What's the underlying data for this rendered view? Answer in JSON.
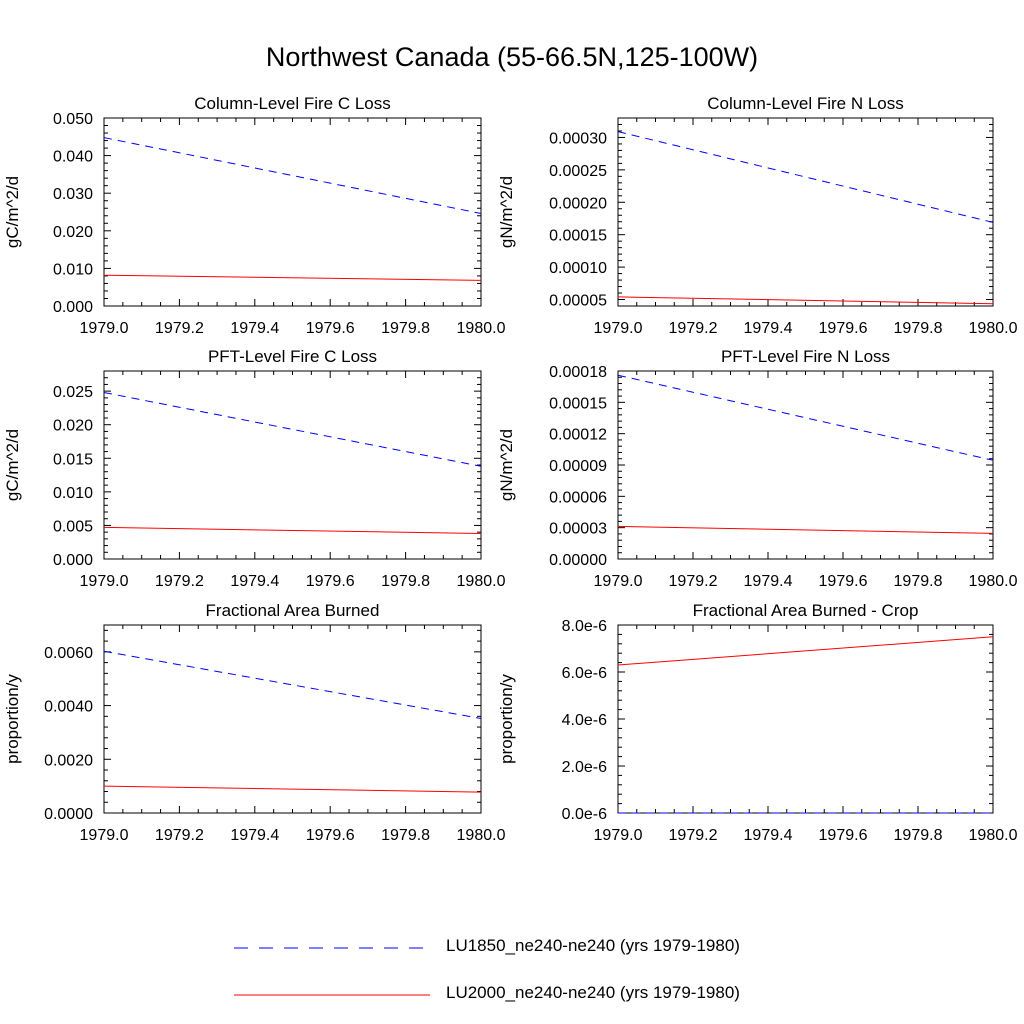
{
  "title": "Northwest Canada (55-66.5N,125-100W)",
  "colors": {
    "lu1850": "#0000ff",
    "lu2000": "#ff0000"
  },
  "legend": [
    {
      "label": "LU1850_ne240-ne240 (yrs 1979-1980)",
      "style": "dashed",
      "color": "#0000ff"
    },
    {
      "label": "LU2000_ne240-ne240 (yrs 1979-1980)",
      "style": "solid",
      "color": "#ff0000"
    }
  ],
  "chart_data": [
    {
      "type": "line",
      "title": "Column-Level Fire C Loss",
      "ylabel": "gC/m^2/d",
      "xlim": [
        1979.0,
        1980.0
      ],
      "ylim": [
        0.0,
        0.05
      ],
      "xticks": [
        "1979.0",
        "1979.2",
        "1979.4",
        "1979.6",
        "1979.8",
        "1980.0"
      ],
      "yticks": [
        "0.000",
        "0.010",
        "0.020",
        "0.030",
        "0.040",
        "0.050"
      ],
      "x": [
        1979.0,
        1980.0
      ],
      "series": [
        {
          "name": "LU1850_ne240-ne240 (yrs 1979-1980)",
          "values": [
            0.0448,
            0.0246
          ]
        },
        {
          "name": "LU2000_ne240-ne240 (yrs 1979-1980)",
          "values": [
            0.0082,
            0.0068
          ]
        }
      ]
    },
    {
      "type": "line",
      "title": "Column-Level Fire N Loss",
      "ylabel": "gN/m^2/d",
      "xlim": [
        1979.0,
        1980.0
      ],
      "ylim": [
        4e-05,
        0.00033
      ],
      "xticks": [
        "1979.0",
        "1979.2",
        "1979.4",
        "1979.6",
        "1979.8",
        "1980.0"
      ],
      "yticks": [
        "0.00005",
        "0.00010",
        "0.00015",
        "0.00020",
        "0.00025",
        "0.00030"
      ],
      "x": [
        1979.0,
        1980.0
      ],
      "series": [
        {
          "name": "LU1850_ne240-ne240 (yrs 1979-1980)",
          "values": [
            0.000309,
            0.000169
          ]
        },
        {
          "name": "LU2000_ne240-ne240 (yrs 1979-1980)",
          "values": [
            5.4e-05,
            4.35e-05
          ]
        }
      ]
    },
    {
      "type": "line",
      "title": "PFT-Level Fire C Loss",
      "ylabel": "gC/m^2/d",
      "xlim": [
        1979.0,
        1980.0
      ],
      "ylim": [
        0.0,
        0.028
      ],
      "xticks": [
        "1979.0",
        "1979.2",
        "1979.4",
        "1979.6",
        "1979.8",
        "1980.0"
      ],
      "yticks": [
        "0.000",
        "0.005",
        "0.010",
        "0.015",
        "0.020",
        "0.025"
      ],
      "x": [
        1979.0,
        1980.0
      ],
      "series": [
        {
          "name": "LU1850_ne240-ne240 (yrs 1979-1980)",
          "values": [
            0.0248,
            0.0138
          ]
        },
        {
          "name": "LU2000_ne240-ne240 (yrs 1979-1980)",
          "values": [
            0.0047,
            0.0038
          ]
        }
      ]
    },
    {
      "type": "line",
      "title": "PFT-Level Fire N Loss",
      "ylabel": "gN/m^2/d",
      "xlim": [
        1979.0,
        1980.0
      ],
      "ylim": [
        0.0,
        0.00018
      ],
      "xticks": [
        "1979.0",
        "1979.2",
        "1979.4",
        "1979.6",
        "1979.8",
        "1980.0"
      ],
      "yticks": [
        "0.00000",
        "0.00003",
        "0.00006",
        "0.00009",
        "0.00012",
        "0.00015",
        "0.00018"
      ],
      "x": [
        1979.0,
        1980.0
      ],
      "series": [
        {
          "name": "LU1850_ne240-ne240 (yrs 1979-1980)",
          "values": [
            0.000176,
            9.45e-05
          ]
        },
        {
          "name": "LU2000_ne240-ne240 (yrs 1979-1980)",
          "values": [
            3.12e-05,
            2.45e-05
          ]
        }
      ]
    },
    {
      "type": "line",
      "title": "Fractional Area Burned",
      "ylabel": "proportion/y",
      "xlim": [
        1979.0,
        1980.0
      ],
      "ylim": [
        0.0,
        0.007
      ],
      "xticks": [
        "1979.0",
        "1979.2",
        "1979.4",
        "1979.6",
        "1979.8",
        "1980.0"
      ],
      "yticks": [
        "0.0000",
        "0.0020",
        "0.0040",
        "0.0060"
      ],
      "x": [
        1979.0,
        1980.0
      ],
      "series": [
        {
          "name": "LU1850_ne240-ne240 (yrs 1979-1980)",
          "values": [
            0.00602,
            0.00352
          ]
        },
        {
          "name": "LU2000_ne240-ne240 (yrs 1979-1980)",
          "values": [
            0.001,
            0.00078
          ]
        }
      ]
    },
    {
      "type": "line",
      "title": "Fractional Area Burned - Crop",
      "ylabel": "proportion/y",
      "xlim": [
        1979.0,
        1980.0
      ],
      "ylim": [
        0.0,
        8e-06
      ],
      "xticks": [
        "1979.0",
        "1979.2",
        "1979.4",
        "1979.6",
        "1979.8",
        "1980.0"
      ],
      "yticks": [
        "0.0e-6",
        "2.0e-6",
        "4.0e-6",
        "6.0e-6",
        "8.0e-6"
      ],
      "x": [
        1979.0,
        1980.0
      ],
      "series": [
        {
          "name": "LU1850_ne240-ne240 (yrs 1979-1980)",
          "values": [
            0.0,
            0.0
          ]
        },
        {
          "name": "LU2000_ne240-ne240 (yrs 1979-1980)",
          "values": [
            6.3e-06,
            7.5e-06
          ]
        }
      ]
    }
  ]
}
